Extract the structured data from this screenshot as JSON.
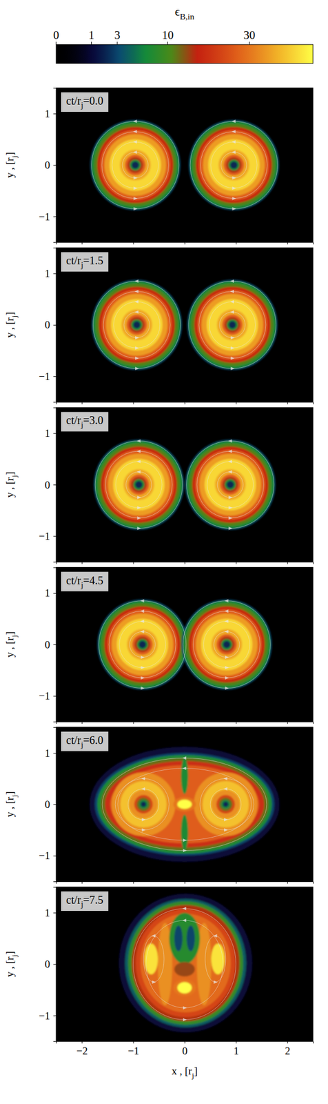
{
  "chart_data": {
    "type": "heatmap",
    "colorbar": {
      "label": {
        "text": "ϵ",
        "subscript": "B,in"
      },
      "range": [
        0,
        53
      ],
      "ticks": [
        0,
        1,
        3,
        10,
        30
      ]
    },
    "xlim": [
      -2.5,
      2.5
    ],
    "xticks": [
      {
        "value": -2,
        "label": "−2"
      },
      {
        "value": -1,
        "label": "−1"
      },
      0,
      1,
      2
    ],
    "ylim": [
      -1.5,
      1.5
    ],
    "yticks": [
      {
        "value": -1,
        "label": "−1"
      },
      0,
      1
    ],
    "xlabel": {
      "text": "x , [r",
      "subscript": "j",
      "end": "]"
    },
    "ylabel": {
      "text": "y , [r",
      "subscript": "j",
      "end": "]"
    },
    "time_label": {
      "text": "ct/r",
      "subscript": "j",
      "equals": "="
    },
    "panels": [
      {
        "time": {
          "value": 0,
          "label": "0.0"
        },
        "tick_labels": "y",
        "jets": [
          {
            "x": -0.96,
            "y": 0
          },
          {
            "x": 0.96,
            "y": 0
          }
        ],
        "profile": {
          "r": [
            0.88,
            0.85,
            0.8,
            0.74,
            0.68,
            0.6,
            0.5,
            0.3,
            0.2,
            0.15,
            0.11,
            0.07
          ],
          "values": [
            3,
            7,
            11,
            17,
            26,
            36,
            46,
            38,
            26,
            15,
            7,
            2
          ]
        },
        "field_line_radii": [
          0.25,
          0.45,
          0.65,
          0.85
        ]
      },
      {
        "time": {
          "value": 1.5,
          "label": "1.5"
        },
        "tick_labels": "y",
        "jets": [
          {
            "x": -0.93,
            "y": 0
          },
          {
            "x": 0.93,
            "y": 0
          }
        ],
        "profile": {
          "r": [
            0.88,
            0.85,
            0.8,
            0.74,
            0.68,
            0.6,
            0.5,
            0.3,
            0.2,
            0.15,
            0.11,
            0.07
          ],
          "values": [
            3,
            7,
            11,
            17,
            26,
            36,
            46,
            38,
            26,
            15,
            7,
            2
          ]
        },
        "field_line_radii": [
          0.25,
          0.45,
          0.65,
          0.85
        ]
      },
      {
        "time": {
          "value": 3,
          "label": "3.0"
        },
        "tick_labels": "y",
        "jets": [
          {
            "x": -0.89,
            "y": 0
          },
          {
            "x": 0.89,
            "y": 0
          }
        ],
        "profile": {
          "r": [
            0.88,
            0.85,
            0.8,
            0.74,
            0.68,
            0.6,
            0.5,
            0.3,
            0.2,
            0.15,
            0.11,
            0.07
          ],
          "values": [
            3,
            7,
            11,
            17,
            26,
            36,
            46,
            38,
            26,
            15,
            7,
            2
          ]
        },
        "field_line_radii": [
          0.25,
          0.45,
          0.65,
          0.85
        ]
      },
      {
        "time": {
          "value": 4.5,
          "label": "4.5"
        },
        "tick_labels": "y",
        "jets": [
          {
            "x": -0.82,
            "y": 0
          },
          {
            "x": 0.82,
            "y": 0
          }
        ],
        "profile": {
          "r": [
            0.88,
            0.85,
            0.8,
            0.74,
            0.68,
            0.6,
            0.5,
            0.3,
            0.2,
            0.15,
            0.11,
            0.07
          ],
          "values": [
            3,
            7,
            11,
            17,
            26,
            36,
            46,
            38,
            26,
            15,
            7,
            2
          ]
        },
        "field_line_radii": [
          0.25,
          0.45,
          0.65,
          0.85
        ]
      },
      {
        "time": {
          "value": 6,
          "label": "6.0"
        },
        "tick_labels": "y",
        "regions": [
          {
            "cx": 0,
            "cy": 0,
            "rx": 1.85,
            "ry": 1.12,
            "value": 1
          },
          {
            "cx": 0,
            "cy": 0,
            "rx": 1.75,
            "ry": 1.0,
            "value": 3
          },
          {
            "cx": 0,
            "cy": 0,
            "rx": 1.7,
            "ry": 0.96,
            "value": 7
          },
          {
            "cx": 0,
            "cy": 0,
            "rx": 1.63,
            "ry": 0.9,
            "value": 12
          },
          {
            "cx": 0,
            "cy": 0,
            "rx": 1.55,
            "ry": 0.84,
            "value": 18
          },
          {
            "cx": 0,
            "cy": 0,
            "rx": 1.45,
            "ry": 0.76,
            "value": 26
          },
          {
            "cx": -0.8,
            "cy": 0,
            "rx": 0.62,
            "ry": 0.62,
            "value": 34
          },
          {
            "cx": 0.8,
            "cy": 0,
            "rx": 0.62,
            "ry": 0.62,
            "value": 34
          },
          {
            "cx": -0.8,
            "cy": 0,
            "rx": 0.45,
            "ry": 0.45,
            "value": 42
          },
          {
            "cx": 0.8,
            "cy": 0,
            "rx": 0.45,
            "ry": 0.45,
            "value": 42
          },
          {
            "cx": -0.8,
            "cy": 0,
            "rx": 0.28,
            "ry": 0.28,
            "value": 34
          },
          {
            "cx": 0.8,
            "cy": 0,
            "rx": 0.28,
            "ry": 0.28,
            "value": 34
          },
          {
            "cx": -0.8,
            "cy": 0,
            "rx": 0.18,
            "ry": 0.18,
            "value": 22
          },
          {
            "cx": 0.8,
            "cy": 0,
            "rx": 0.18,
            "ry": 0.18,
            "value": 22
          },
          {
            "cx": -0.8,
            "cy": 0,
            "rx": 0.13,
            "ry": 0.13,
            "value": 12
          },
          {
            "cx": 0.8,
            "cy": 0,
            "rx": 0.13,
            "ry": 0.13,
            "value": 12
          },
          {
            "cx": -0.8,
            "cy": 0,
            "rx": 0.09,
            "ry": 0.09,
            "value": 6
          },
          {
            "cx": 0.8,
            "cy": 0,
            "rx": 0.09,
            "ry": 0.09,
            "value": 6
          },
          {
            "cx": -0.8,
            "cy": 0,
            "rx": 0.05,
            "ry": 0.05,
            "value": 2
          },
          {
            "cx": 0.8,
            "cy": 0,
            "rx": 0.05,
            "ry": 0.05,
            "value": 2
          },
          {
            "cx": 0,
            "cy": 0.55,
            "rx": 0.07,
            "ry": 0.35,
            "value": 7
          },
          {
            "cx": 0,
            "cy": -0.55,
            "rx": 0.07,
            "ry": 0.35,
            "value": 7
          },
          {
            "cx": 0,
            "cy": 0,
            "rx": 0.22,
            "ry": 0.14,
            "value": 30
          },
          {
            "cx": 0,
            "cy": 0,
            "rx": 0.14,
            "ry": 0.09,
            "value": 53
          }
        ],
        "field_lines": [
          {
            "cx": 0,
            "cy": 0,
            "rx": 1.6,
            "ry": 0.9
          },
          {
            "cx": 0,
            "cy": 0,
            "rx": 1.35,
            "ry": 0.7
          },
          {
            "cx": -0.8,
            "cy": 0,
            "rx": 0.5,
            "ry": 0.5
          },
          {
            "cx": 0.8,
            "cy": 0,
            "rx": 0.5,
            "ry": 0.5
          },
          {
            "cx": -0.8,
            "cy": 0,
            "rx": 0.3,
            "ry": 0.3
          },
          {
            "cx": 0.8,
            "cy": 0,
            "rx": 0.3,
            "ry": 0.3
          }
        ]
      },
      {
        "time": {
          "value": 7.5,
          "label": "7.5"
        },
        "tick_labels": true,
        "regions": [
          {
            "cx": 0.02,
            "cy": 0.02,
            "rx": 1.3,
            "ry": 1.35,
            "value": 1
          },
          {
            "cx": 0.02,
            "cy": 0.02,
            "rx": 1.18,
            "ry": 1.25,
            "value": 4
          },
          {
            "cx": 0.02,
            "cy": 0.02,
            "rx": 1.12,
            "ry": 1.2,
            "value": 9
          },
          {
            "cx": 0.02,
            "cy": 0.02,
            "rx": 1.05,
            "ry": 1.13,
            "value": 15
          },
          {
            "cx": 0.02,
            "cy": 0.02,
            "rx": 0.97,
            "ry": 1.05,
            "value": 22
          },
          {
            "cx": 0.02,
            "cy": 0.02,
            "rx": 0.88,
            "ry": 0.96,
            "value": 28
          },
          {
            "cx": -0.38,
            "cy": 0,
            "rx": 0.14,
            "ry": 0.8,
            "value": 34
          },
          {
            "cx": 0.38,
            "cy": 0,
            "rx": 0.14,
            "ry": 0.8,
            "value": 34
          },
          {
            "cx": -0.65,
            "cy": 0.1,
            "rx": 0.13,
            "ry": 0.3,
            "value": 48
          },
          {
            "cx": 0.65,
            "cy": 0.1,
            "rx": 0.13,
            "ry": 0.3,
            "value": 48
          },
          {
            "cx": 0,
            "cy": 0.5,
            "rx": 0.3,
            "ry": 0.5,
            "value": 8
          },
          {
            "cx": -0.12,
            "cy": 0.5,
            "rx": 0.08,
            "ry": 0.25,
            "value": 3
          },
          {
            "cx": 0.12,
            "cy": 0.5,
            "rx": 0.08,
            "ry": 0.25,
            "value": 3
          },
          {
            "cx": 0,
            "cy": -0.1,
            "rx": 0.2,
            "ry": 0.14,
            "value": 14
          },
          {
            "cx": 0,
            "cy": -0.46,
            "rx": 0.22,
            "ry": 0.16,
            "value": 30
          },
          {
            "cx": 0,
            "cy": -0.46,
            "rx": 0.14,
            "ry": 0.11,
            "value": 53
          }
        ],
        "field_lines": [
          {
            "cx": 0,
            "cy": 0,
            "rx": 1.0,
            "ry": 1.08
          },
          {
            "cx": 0,
            "cy": 0,
            "rx": 0.75,
            "ry": 0.85
          },
          {
            "cx": -0.6,
            "cy": 0.1,
            "rx": 0.2,
            "ry": 0.45
          },
          {
            "cx": 0.6,
            "cy": 0.1,
            "rx": 0.2,
            "ry": 0.45
          }
        ]
      }
    ]
  }
}
